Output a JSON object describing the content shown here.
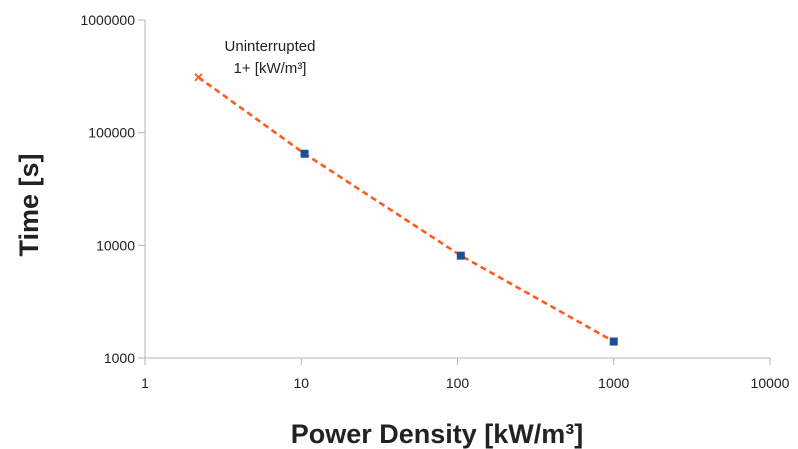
{
  "chart_data": {
    "type": "scatter",
    "title": "",
    "xlabel": "Power Density [kW/m³]",
    "ylabel": "Time [s]",
    "x_scale": "log",
    "y_scale": "log",
    "xlim": [
      1,
      10000
    ],
    "ylim": [
      1000,
      1000000
    ],
    "x_ticks": [
      "1",
      "10",
      "100",
      "1000",
      "10000"
    ],
    "y_ticks": [
      "1000",
      "10000",
      "100000",
      "1000000"
    ],
    "grid": false,
    "series": [
      {
        "marker": "square",
        "color": "#1f4e99",
        "x": [
          10.5,
          105,
          1000
        ],
        "y": [
          65000,
          8100,
          1400
        ]
      }
    ],
    "trendline": {
      "style": "dashed",
      "color": "#ff5a1f",
      "x": [
        2.2,
        10.5,
        105,
        1000
      ],
      "y": [
        310000,
        65000,
        8100,
        1400
      ]
    },
    "annotation": {
      "line1": "Uninterrupted",
      "line2": "1+ [kW/m³]",
      "marker": "x",
      "x": 2.2,
      "y": 310000
    }
  }
}
